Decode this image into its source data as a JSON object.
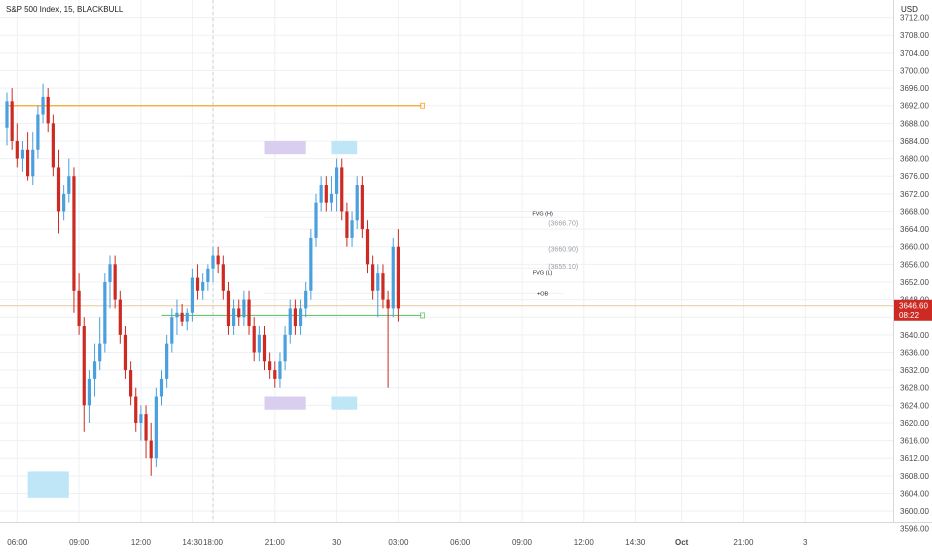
{
  "header": {
    "symbol_label": "S&P 500 Index, 15, BLACKBULL",
    "currency_label": "USD"
  },
  "colors": {
    "up": "#4a9fde",
    "down": "#cc2a22",
    "background": "#ffffff",
    "grid": "#eef0f3",
    "axis_text": "#4a4a4a",
    "orange_level": "#f5a623",
    "green_level": "#6cc46c",
    "purple_zone": "#d9cdf0",
    "cyan_zone": "#bfe6f7",
    "price_tag": "#cc2a22"
  },
  "chart_data": {
    "type": "candlestick",
    "title": "S&P 500 Index, 15, BLACKBULL",
    "ylabel": "USD",
    "ylim": [
      3594,
      3716
    ],
    "y_ticks": [
      3596,
      3600,
      3604,
      3608,
      3612,
      3616,
      3620,
      3624,
      3628,
      3632,
      3636,
      3640,
      3644,
      3648,
      3652,
      3656,
      3660,
      3664,
      3668,
      3672,
      3676,
      3680,
      3684,
      3688,
      3692,
      3696,
      3700,
      3704,
      3708,
      3712
    ],
    "y_tick_labels": [
      "3596.00",
      "3600.00",
      "3604.00",
      "3608.00",
      "3612.00",
      "3616.00",
      "3620.00",
      "3624.00",
      "3628.00",
      "3632.00",
      "3636.00",
      "3640.00",
      "3644.00",
      "3648.00",
      "3652.00",
      "3656.00",
      "3660.00",
      "3664.00",
      "3668.00",
      "3672.00",
      "3676.00",
      "3680.00",
      "3684.00",
      "3688.00",
      "3692.00",
      "3696.00",
      "3700.00",
      "3704.00",
      "3708.00",
      "3712.00"
    ],
    "x_ticks": [
      {
        "label": "06:00",
        "bar": 2
      },
      {
        "label": "09:00",
        "bar": 14
      },
      {
        "label": "12:00",
        "bar": 26
      },
      {
        "label": "14:30",
        "bar": 36
      },
      {
        "label": "18:00",
        "bar": 40
      },
      {
        "label": "21:00",
        "bar": 52
      },
      {
        "label": "30",
        "bar": 64
      },
      {
        "label": "03:00",
        "bar": 76
      },
      {
        "label": "06:00",
        "bar": 88
      },
      {
        "label": "09:00",
        "bar": 100
      },
      {
        "label": "12:00",
        "bar": 112
      },
      {
        "label": "14:30",
        "bar": 122
      },
      {
        "label": "Oct",
        "bar": 131
      },
      {
        "label": "21:00",
        "bar": 143
      },
      {
        "label": "3",
        "bar": 155
      }
    ],
    "session_divider_bar": 40,
    "candles": [
      [
        3687,
        3695,
        3683,
        3693
      ],
      [
        3693,
        3696,
        3682,
        3684
      ],
      [
        3684,
        3688,
        3678,
        3680
      ],
      [
        3680,
        3684,
        3677,
        3682
      ],
      [
        3682,
        3686,
        3675,
        3676
      ],
      [
        3676,
        3686,
        3674,
        3682
      ],
      [
        3682,
        3692,
        3680,
        3690
      ],
      [
        3690,
        3697,
        3688,
        3694
      ],
      [
        3694,
        3696,
        3686,
        3688
      ],
      [
        3688,
        3690,
        3676,
        3678
      ],
      [
        3678,
        3682,
        3663,
        3668
      ],
      [
        3668,
        3674,
        3666,
        3672
      ],
      [
        3672,
        3680,
        3670,
        3676
      ],
      [
        3676,
        3678,
        3645,
        3650
      ],
      [
        3650,
        3654,
        3640,
        3642
      ],
      [
        3642,
        3644,
        3618,
        3624
      ],
      [
        3624,
        3632,
        3620,
        3630
      ],
      [
        3630,
        3638,
        3626,
        3634
      ],
      [
        3634,
        3644,
        3632,
        3638
      ],
      [
        3638,
        3654,
        3636,
        3652
      ],
      [
        3652,
        3658,
        3646,
        3656
      ],
      [
        3656,
        3658,
        3646,
        3648
      ],
      [
        3648,
        3650,
        3638,
        3640
      ],
      [
        3640,
        3642,
        3630,
        3632
      ],
      [
        3632,
        3634,
        3624,
        3626
      ],
      [
        3626,
        3628,
        3618,
        3620
      ],
      [
        3620,
        3624,
        3616,
        3622
      ],
      [
        3622,
        3624,
        3612,
        3616
      ],
      [
        3616,
        3620,
        3608,
        3612
      ],
      [
        3612,
        3628,
        3610,
        3626
      ],
      [
        3626,
        3632,
        3624,
        3630
      ],
      [
        3630,
        3640,
        3628,
        3638
      ],
      [
        3638,
        3646,
        3636,
        3644
      ],
      [
        3644,
        3648,
        3640,
        3645
      ],
      [
        3645,
        3647,
        3642,
        3643
      ],
      [
        3643,
        3646,
        3641,
        3645
      ],
      [
        3645,
        3655,
        3643,
        3653
      ],
      [
        3653,
        3656,
        3648,
        3650
      ],
      [
        3650,
        3654,
        3648,
        3652
      ],
      [
        3652,
        3656,
        3650,
        3655
      ],
      [
        3655,
        3660,
        3652,
        3658
      ],
      [
        3658,
        3660,
        3654,
        3656
      ],
      [
        3656,
        3658,
        3648,
        3650
      ],
      [
        3650,
        3652,
        3640,
        3642
      ],
      [
        3642,
        3648,
        3640,
        3646
      ],
      [
        3646,
        3648,
        3642,
        3644
      ],
      [
        3644,
        3650,
        3642,
        3648
      ],
      [
        3648,
        3650,
        3640,
        3642
      ],
      [
        3642,
        3644,
        3634,
        3636
      ],
      [
        3636,
        3642,
        3634,
        3640
      ],
      [
        3640,
        3642,
        3632,
        3634
      ],
      [
        3634,
        3636,
        3630,
        3632
      ],
      [
        3632,
        3634,
        3628,
        3630
      ],
      [
        3630,
        3636,
        3628,
        3634
      ],
      [
        3634,
        3642,
        3632,
        3640
      ],
      [
        3640,
        3648,
        3638,
        3646
      ],
      [
        3646,
        3648,
        3640,
        3642
      ],
      [
        3642,
        3648,
        3640,
        3646
      ],
      [
        3646,
        3652,
        3644,
        3650
      ],
      [
        3650,
        3664,
        3648,
        3662
      ],
      [
        3662,
        3672,
        3660,
        3670
      ],
      [
        3670,
        3676,
        3668,
        3674
      ],
      [
        3674,
        3676,
        3668,
        3670
      ],
      [
        3670,
        3676,
        3668,
        3672
      ],
      [
        3672,
        3680,
        3668,
        3678
      ],
      [
        3678,
        3680,
        3666,
        3668
      ],
      [
        3668,
        3670,
        3660,
        3662
      ],
      [
        3662,
        3668,
        3660,
        3666
      ],
      [
        3666,
        3676,
        3664,
        3674
      ],
      [
        3674,
        3676,
        3662,
        3664
      ],
      [
        3664,
        3666,
        3654,
        3656
      ],
      [
        3656,
        3658,
        3648,
        3650
      ],
      [
        3650,
        3656,
        3644,
        3654
      ],
      [
        3654,
        3656,
        3646,
        3648
      ],
      [
        3648,
        3650,
        3628,
        3646
      ],
      [
        3646,
        3662,
        3644,
        3660
      ],
      [
        3660,
        3664,
        3643,
        3646
      ]
    ],
    "zones": [
      {
        "name": "cyan-zone-low-left",
        "type": "cyan",
        "bar_from": 4,
        "bar_to": 12,
        "y_from": 3603,
        "y_to": 3609
      },
      {
        "name": "purple-zone-top",
        "type": "purple",
        "bar_from": 50,
        "bar_to": 58,
        "y_from": 3681,
        "y_to": 3684
      },
      {
        "name": "purple-zone-bottom",
        "type": "purple",
        "bar_from": 50,
        "bar_to": 58,
        "y_from": 3623,
        "y_to": 3626
      },
      {
        "name": "cyan-zone-top",
        "type": "cyan",
        "bar_from": 63,
        "bar_to": 68,
        "y_from": 3681,
        "y_to": 3684
      },
      {
        "name": "cyan-zone-bottom",
        "type": "cyan",
        "bar_from": 63,
        "bar_to": 68,
        "y_from": 3623,
        "y_to": 3626
      }
    ],
    "levels": [
      {
        "name": "orange-level",
        "price": 3692,
        "bar_from": 0,
        "bar_to": 80.5,
        "color_key": "orange_level",
        "width": 1.2
      },
      {
        "name": "green-level",
        "price": 3644.4,
        "bar_from": 30,
        "bar_to": 80.5,
        "color_key": "green_level",
        "width": 1.2
      },
      {
        "name": "fvg-h-level",
        "price": 3666.7,
        "bar_from": 50,
        "bar_to": 108,
        "color_key": "grid",
        "width": 1
      },
      {
        "name": "fvg-l-level",
        "price": 3655.1,
        "bar_from": 50,
        "bar_to": 108,
        "color_key": "grid",
        "width": 1
      },
      {
        "name": "ob-level",
        "price": 3649.4,
        "bar_from": 50,
        "bar_to": 108,
        "color_key": "grid",
        "width": 1
      }
    ],
    "annotations": [
      {
        "name": "fvg-h-label",
        "text": "FVG (H)",
        "price": 3667.5,
        "bar": 104
      },
      {
        "name": "fvg-h-value",
        "text": "(3666.70)",
        "price": 3665.3,
        "bar": 108,
        "muted": true
      },
      {
        "name": "fvg-mid-value",
        "text": "(3660.90)",
        "price": 3659.4,
        "bar": 108,
        "muted": true
      },
      {
        "name": "fvg-l-value",
        "text": "(3655.10)",
        "price": 3655.4,
        "bar": 108,
        "muted": true
      },
      {
        "name": "fvg-l-label",
        "text": "FVG (L)",
        "price": 3654.2,
        "bar": 104
      },
      {
        "name": "ob-label",
        "text": "+OB",
        "price": 3649.4,
        "bar": 104
      }
    ],
    "current_price": {
      "value": 3646.6,
      "label": "3646.60",
      "countdown": "08:22"
    }
  }
}
